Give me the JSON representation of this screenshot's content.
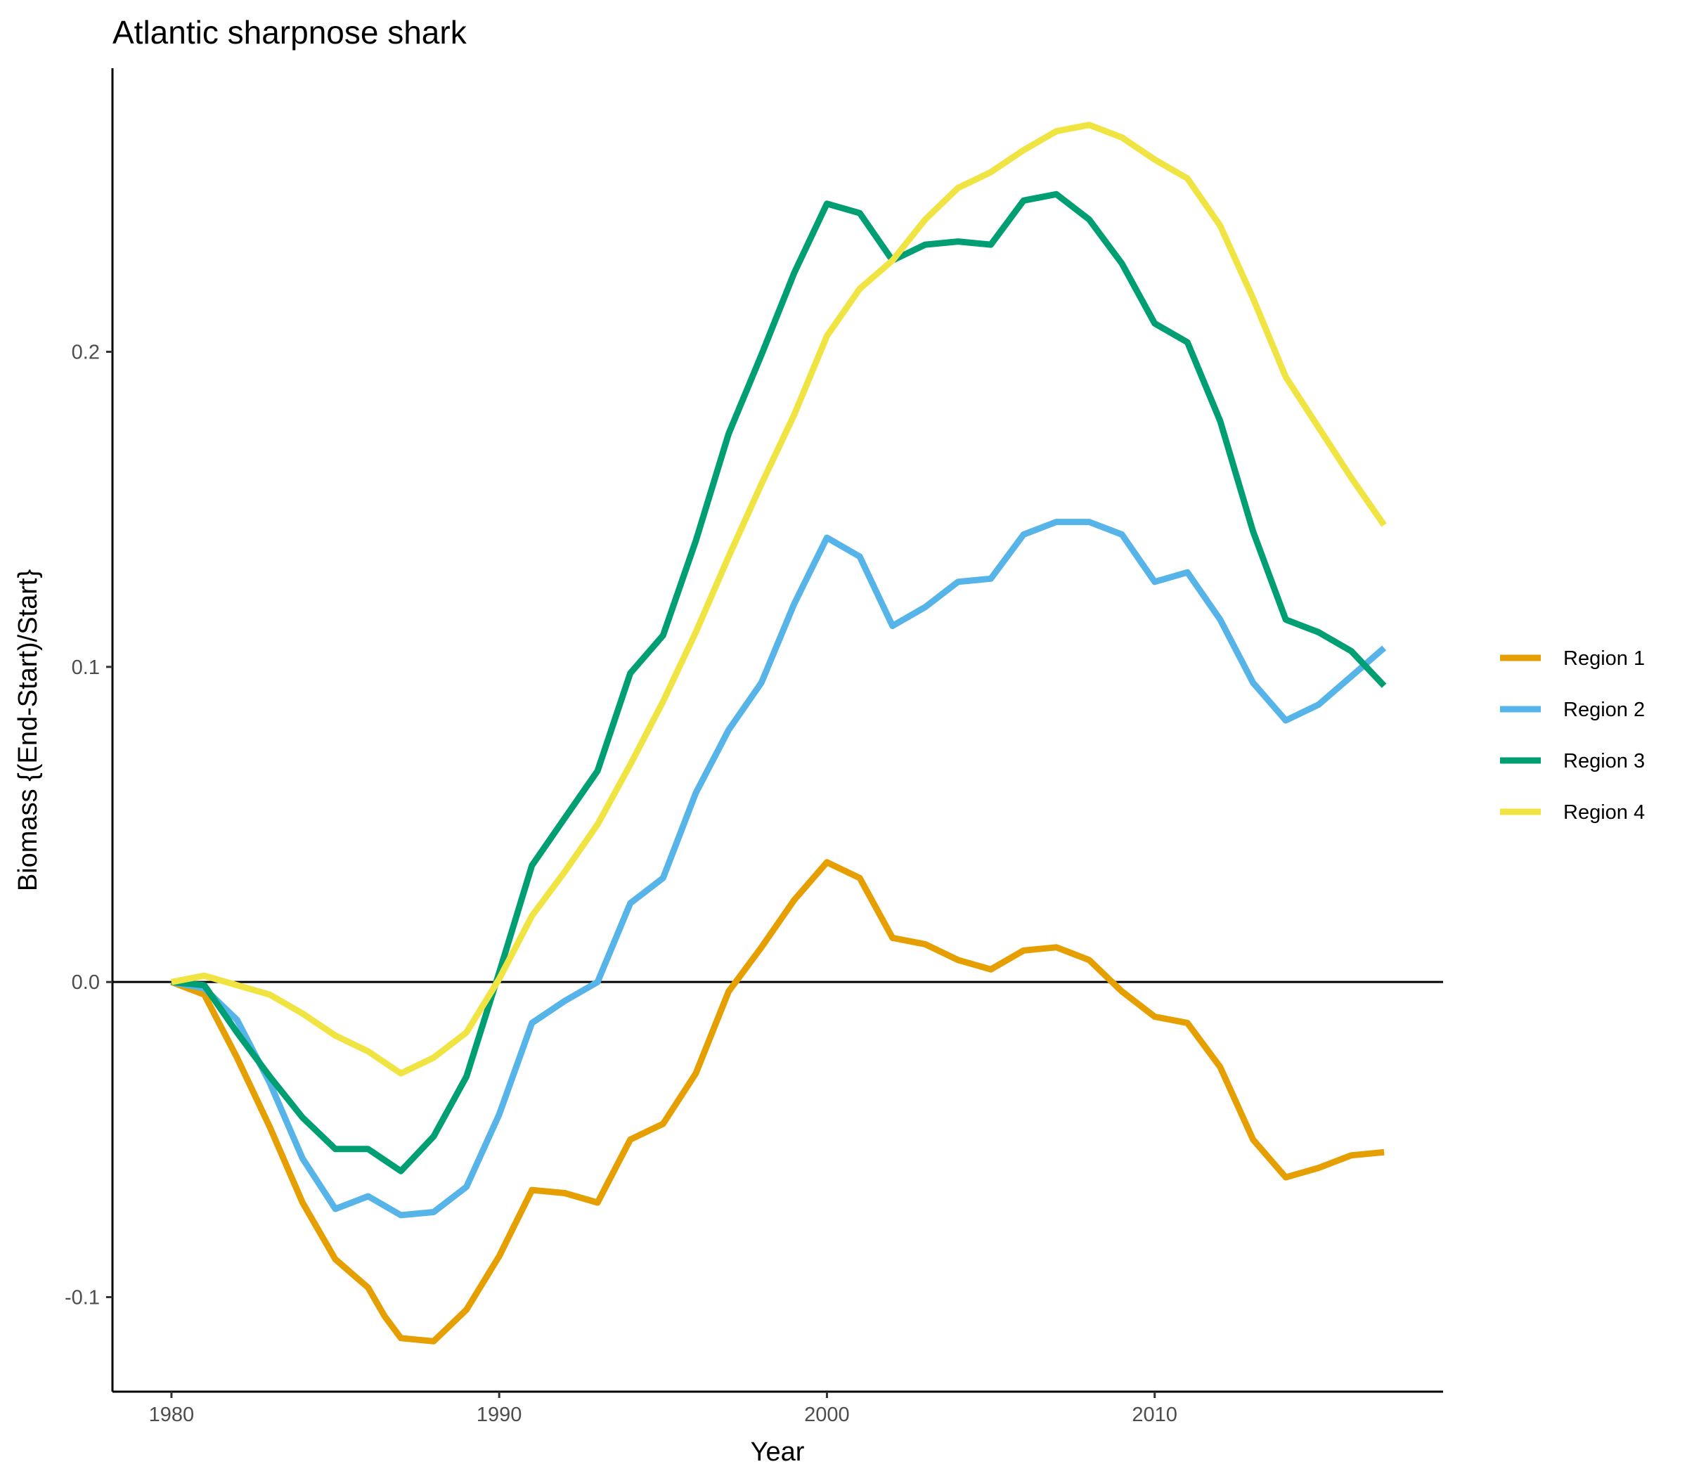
{
  "chart_data": {
    "type": "line",
    "title": "Atlantic sharpnose shark",
    "xlabel": "Year",
    "ylabel": "Biomass {(End-Start)/Start}",
    "xlim": [
      1978.2,
      2018.8
    ],
    "ylim": [
      -0.13,
      0.29
    ],
    "x_ticks": [
      1980,
      1990,
      2000,
      2010
    ],
    "x_tick_labels": [
      "1980",
      "1990",
      "2000",
      "2010"
    ],
    "y_ticks": [
      -0.1,
      0.0,
      0.1,
      0.2
    ],
    "y_tick_labels": [
      "-0.1",
      "0.0",
      "0.1",
      "0.2"
    ],
    "reference_line_y": 0,
    "grid": false,
    "legend_position": "right",
    "series": [
      {
        "name": "Region 1",
        "color": "#E69F00",
        "points": [
          [
            1980,
            0
          ],
          [
            1981,
            -0.004
          ],
          [
            1982,
            -0.024
          ],
          [
            1983,
            -0.046
          ],
          [
            1984,
            -0.07
          ],
          [
            1985,
            -0.088
          ],
          [
            1986,
            -0.097
          ],
          [
            1986.5,
            -0.106
          ],
          [
            1987,
            -0.113
          ],
          [
            1988,
            -0.114
          ],
          [
            1989,
            -0.104
          ],
          [
            1990,
            -0.087
          ],
          [
            1991,
            -0.066
          ],
          [
            1992,
            -0.067
          ],
          [
            1993,
            -0.07
          ],
          [
            1994,
            -0.05
          ],
          [
            1995,
            -0.045
          ],
          [
            1996,
            -0.029
          ],
          [
            1997,
            -0.003
          ],
          [
            1998,
            0.011
          ],
          [
            1999,
            0.026
          ],
          [
            2000,
            0.038
          ],
          [
            2001,
            0.033
          ],
          [
            2002,
            0.014
          ],
          [
            2003,
            0.012
          ],
          [
            2004,
            0.007
          ],
          [
            2005,
            0.004
          ],
          [
            2006,
            0.01
          ],
          [
            2007,
            0.011
          ],
          [
            2008,
            0.007
          ],
          [
            2009,
            -0.003
          ],
          [
            2010,
            -0.011
          ],
          [
            2011,
            -0.013
          ],
          [
            2012,
            -0.027
          ],
          [
            2013,
            -0.05
          ],
          [
            2014,
            -0.062
          ],
          [
            2015,
            -0.059
          ],
          [
            2016,
            -0.055
          ],
          [
            2017,
            -0.054
          ]
        ]
      },
      {
        "name": "Region 2",
        "color": "#56B4E9",
        "points": [
          [
            1980,
            0
          ],
          [
            1981,
            -0.002
          ],
          [
            1982,
            -0.012
          ],
          [
            1983,
            -0.032
          ],
          [
            1984,
            -0.056
          ],
          [
            1985,
            -0.072
          ],
          [
            1986,
            -0.068
          ],
          [
            1987,
            -0.074
          ],
          [
            1988,
            -0.073
          ],
          [
            1989,
            -0.065
          ],
          [
            1990,
            -0.042
          ],
          [
            1991,
            -0.013
          ],
          [
            1992,
            -0.006
          ],
          [
            1993,
            0.0
          ],
          [
            1994,
            0.025
          ],
          [
            1995,
            0.033
          ],
          [
            1996,
            0.06
          ],
          [
            1997,
            0.08
          ],
          [
            1998,
            0.095
          ],
          [
            1999,
            0.12
          ],
          [
            2000,
            0.141
          ],
          [
            2001,
            0.135
          ],
          [
            2002,
            0.113
          ],
          [
            2003,
            0.119
          ],
          [
            2004,
            0.127
          ],
          [
            2005,
            0.128
          ],
          [
            2006,
            0.142
          ],
          [
            2007,
            0.146
          ],
          [
            2008,
            0.146
          ],
          [
            2009,
            0.142
          ],
          [
            2010,
            0.127
          ],
          [
            2011,
            0.13
          ],
          [
            2012,
            0.115
          ],
          [
            2013,
            0.095
          ],
          [
            2014,
            0.083
          ],
          [
            2015,
            0.088
          ],
          [
            2016,
            0.097
          ],
          [
            2017,
            0.106
          ]
        ]
      },
      {
        "name": "Region 3",
        "color": "#009E73",
        "points": [
          [
            1980,
            0
          ],
          [
            1981,
            -0.001
          ],
          [
            1982,
            -0.016
          ],
          [
            1983,
            -0.03
          ],
          [
            1984,
            -0.043
          ],
          [
            1985,
            -0.053
          ],
          [
            1986,
            -0.053
          ],
          [
            1987,
            -0.06
          ],
          [
            1988,
            -0.049
          ],
          [
            1989,
            -0.03
          ],
          [
            1990,
            0.003
          ],
          [
            1991,
            0.037
          ],
          [
            1992,
            0.052
          ],
          [
            1993,
            0.067
          ],
          [
            1994,
            0.098
          ],
          [
            1995,
            0.11
          ],
          [
            1996,
            0.14
          ],
          [
            1997,
            0.174
          ],
          [
            1998,
            0.199
          ],
          [
            1999,
            0.225
          ],
          [
            2000,
            0.247
          ],
          [
            2001,
            0.244
          ],
          [
            2002,
            0.229
          ],
          [
            2003,
            0.234
          ],
          [
            2004,
            0.235
          ],
          [
            2005,
            0.234
          ],
          [
            2006,
            0.248
          ],
          [
            2007,
            0.25
          ],
          [
            2008,
            0.242
          ],
          [
            2009,
            0.228
          ],
          [
            2010,
            0.209
          ],
          [
            2011,
            0.203
          ],
          [
            2012,
            0.178
          ],
          [
            2013,
            0.143
          ],
          [
            2014,
            0.115
          ],
          [
            2015,
            0.111
          ],
          [
            2016,
            0.105
          ],
          [
            2017,
            0.094
          ]
        ]
      },
      {
        "name": "Region 4",
        "color": "#F0E442",
        "points": [
          [
            1980,
            0
          ],
          [
            1981,
            0.002
          ],
          [
            1982,
            -0.001
          ],
          [
            1983,
            -0.004
          ],
          [
            1984,
            -0.01
          ],
          [
            1985,
            -0.017
          ],
          [
            1986,
            -0.022
          ],
          [
            1987,
            -0.029
          ],
          [
            1988,
            -0.024
          ],
          [
            1989,
            -0.016
          ],
          [
            1990,
            0.001
          ],
          [
            1991,
            0.021
          ],
          [
            1992,
            0.035
          ],
          [
            1993,
            0.05
          ],
          [
            1994,
            0.069
          ],
          [
            1995,
            0.089
          ],
          [
            1996,
            0.111
          ],
          [
            1997,
            0.135
          ],
          [
            1998,
            0.158
          ],
          [
            1999,
            0.18
          ],
          [
            2000,
            0.205
          ],
          [
            2001,
            0.22
          ],
          [
            2002,
            0.229
          ],
          [
            2003,
            0.242
          ],
          [
            2004,
            0.252
          ],
          [
            2005,
            0.257
          ],
          [
            2006,
            0.264
          ],
          [
            2007,
            0.27
          ],
          [
            2008,
            0.272
          ],
          [
            2009,
            0.268
          ],
          [
            2010,
            0.261
          ],
          [
            2011,
            0.255
          ],
          [
            2012,
            0.24
          ],
          [
            2013,
            0.217
          ],
          [
            2014,
            0.192
          ],
          [
            2015,
            0.176
          ],
          [
            2016,
            0.16
          ],
          [
            2017,
            0.145
          ]
        ]
      }
    ]
  }
}
